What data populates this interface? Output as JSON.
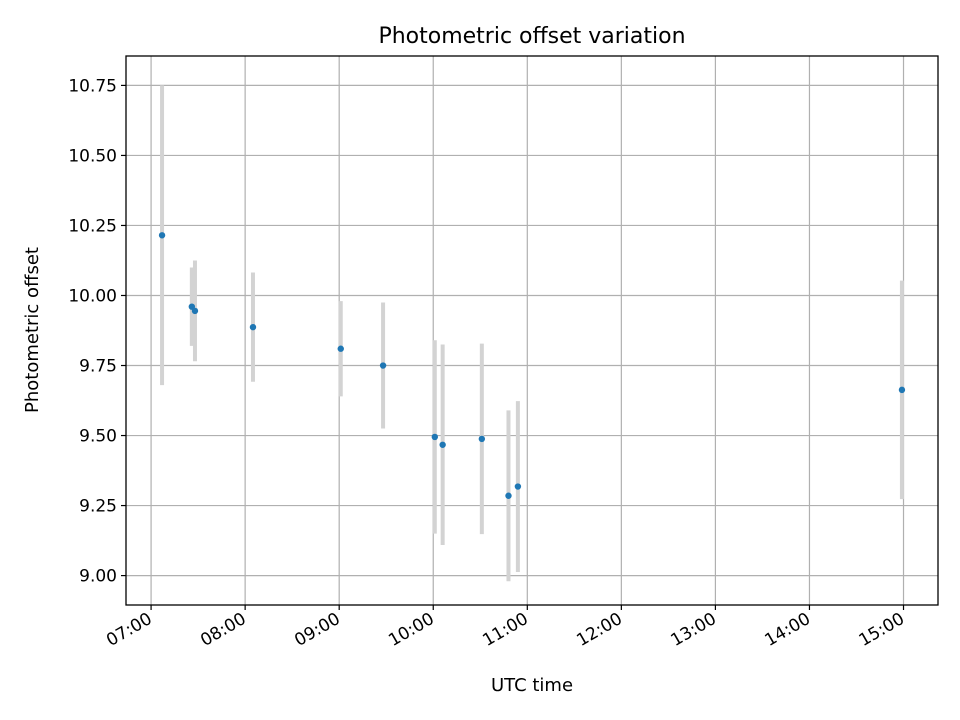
{
  "chart_data": {
    "type": "scatter",
    "title": "Photometric offset variation",
    "xlabel": "UTC time",
    "ylabel": "Photometric offset",
    "x_axis": {
      "kind": "time",
      "range": [
        "06:44",
        "15:22"
      ],
      "ticks": [
        "07:00",
        "08:00",
        "09:00",
        "10:00",
        "11:00",
        "12:00",
        "13:00",
        "14:00",
        "15:00"
      ]
    },
    "y_axis": {
      "range": [
        8.895,
        10.855
      ],
      "ticks": [
        "9.00",
        "9.25",
        "9.50",
        "9.75",
        "10.00",
        "10.25",
        "10.50",
        "10.75"
      ]
    },
    "grid": true,
    "colors": {
      "points": "#1f77b4",
      "error_bars": "#d3d3d3"
    },
    "series": [
      {
        "points": [
          {
            "x": "07:07",
            "y": 10.215,
            "err": 0.535
          },
          {
            "x": "07:26",
            "y": 9.96,
            "err": 0.14
          },
          {
            "x": "07:28",
            "y": 9.945,
            "err": 0.18
          },
          {
            "x": "08:05",
            "y": 9.887,
            "err": 0.195
          },
          {
            "x": "09:01",
            "y": 9.81,
            "err": 0.17
          },
          {
            "x": "09:28",
            "y": 9.75,
            "err": 0.225
          },
          {
            "x": "10:01",
            "y": 9.495,
            "err": 0.345
          },
          {
            "x": "10:06",
            "y": 9.467,
            "err": 0.358
          },
          {
            "x": "10:31",
            "y": 9.488,
            "err": 0.34
          },
          {
            "x": "10:48",
            "y": 9.285,
            "err": 0.305
          },
          {
            "x": "10:54",
            "y": 9.318,
            "err": 0.305
          },
          {
            "x": "14:59",
            "y": 9.663,
            "err": 0.39
          }
        ]
      }
    ]
  }
}
